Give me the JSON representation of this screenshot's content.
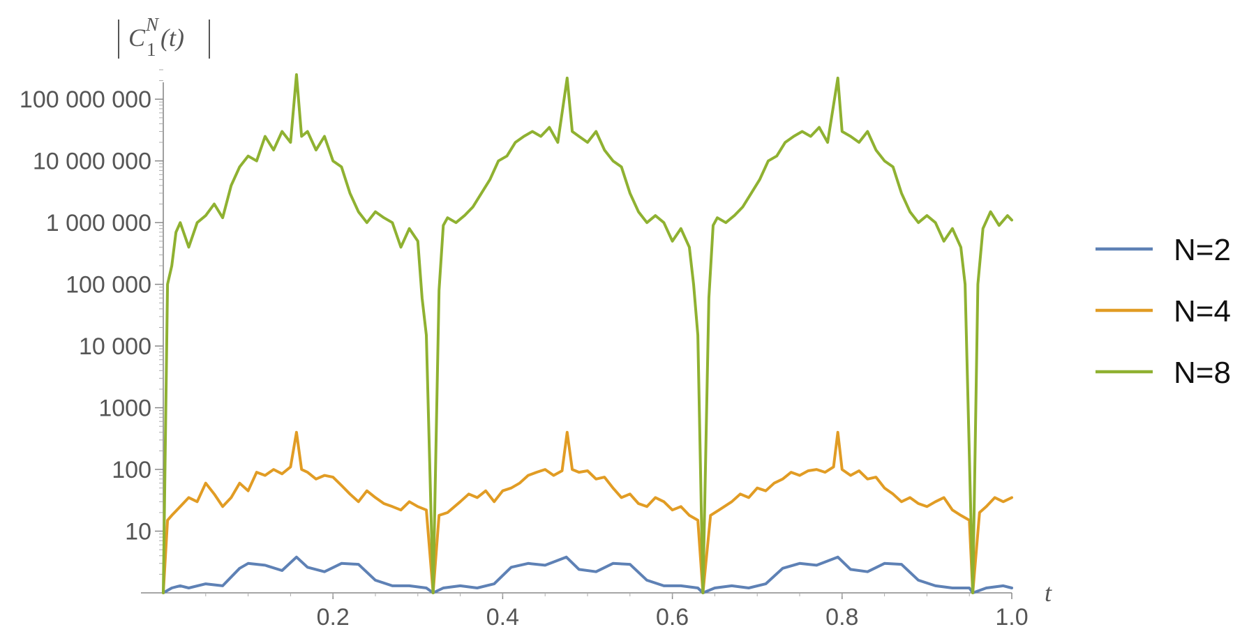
{
  "chart_data": {
    "type": "line",
    "title": "",
    "xlabel": "t",
    "ylabel": "|C_1^N(t)|",
    "ylabel_parts": {
      "base": "C",
      "sup": "N",
      "sub": "1",
      "arg": "(t)"
    },
    "xlim": [
      0,
      1.0
    ],
    "ylog": true,
    "ylim": [
      1,
      300000000
    ],
    "grid": false,
    "legend_position": "right",
    "x_ticks": [
      0.2,
      0.4,
      0.6,
      0.8,
      1.0
    ],
    "x_tick_labels": [
      "0.2",
      "0.4",
      "0.6",
      "0.8",
      "1.0"
    ],
    "y_ticks": [
      10,
      100,
      1000,
      10000,
      100000,
      1000000,
      10000000,
      100000000
    ],
    "y_tick_labels": [
      "10",
      "100",
      "1000",
      "10 000",
      "100 000",
      "1 000 000",
      "10 000 000",
      "100 000 000"
    ],
    "series": [
      {
        "name": "N=2",
        "color": "#5e81b5",
        "x": [
          0.0,
          0.01,
          0.02,
          0.03,
          0.05,
          0.07,
          0.09,
          0.1,
          0.12,
          0.14,
          0.157,
          0.17,
          0.19,
          0.21,
          0.23,
          0.25,
          0.27,
          0.29,
          0.31,
          0.318,
          0.33,
          0.35,
          0.37,
          0.39,
          0.41,
          0.43,
          0.45,
          0.475,
          0.49,
          0.51,
          0.53,
          0.55,
          0.57,
          0.59,
          0.61,
          0.63,
          0.636,
          0.65,
          0.67,
          0.69,
          0.71,
          0.73,
          0.75,
          0.77,
          0.795,
          0.81,
          0.83,
          0.85,
          0.87,
          0.89,
          0.91,
          0.93,
          0.95,
          0.954,
          0.97,
          0.99,
          1.0
        ],
        "y": [
          1,
          1.2,
          1.3,
          1.2,
          1.4,
          1.3,
          2.5,
          3,
          2.8,
          2.3,
          3.8,
          2.6,
          2.2,
          3,
          2.9,
          1.6,
          1.3,
          1.3,
          1.2,
          1,
          1.2,
          1.3,
          1.2,
          1.4,
          2.6,
          3,
          2.8,
          3.8,
          2.4,
          2.2,
          3,
          2.9,
          1.6,
          1.3,
          1.3,
          1.2,
          1,
          1.2,
          1.3,
          1.2,
          1.4,
          2.5,
          3,
          2.8,
          3.8,
          2.4,
          2.2,
          3,
          2.9,
          1.6,
          1.3,
          1.2,
          1.2,
          1,
          1.2,
          1.3,
          1.2
        ]
      },
      {
        "name": "N=4",
        "color": "#e19c24",
        "x": [
          0.0,
          0.005,
          0.01,
          0.02,
          0.03,
          0.04,
          0.05,
          0.06,
          0.07,
          0.08,
          0.09,
          0.1,
          0.11,
          0.12,
          0.13,
          0.14,
          0.15,
          0.157,
          0.163,
          0.17,
          0.18,
          0.19,
          0.2,
          0.21,
          0.22,
          0.23,
          0.24,
          0.25,
          0.26,
          0.27,
          0.28,
          0.29,
          0.3,
          0.31,
          0.318,
          0.325,
          0.335,
          0.35,
          0.36,
          0.37,
          0.38,
          0.39,
          0.4,
          0.41,
          0.42,
          0.43,
          0.44,
          0.45,
          0.46,
          0.47,
          0.476,
          0.482,
          0.49,
          0.5,
          0.51,
          0.52,
          0.53,
          0.54,
          0.55,
          0.56,
          0.57,
          0.58,
          0.59,
          0.6,
          0.61,
          0.62,
          0.63,
          0.636,
          0.645,
          0.655,
          0.67,
          0.68,
          0.69,
          0.7,
          0.71,
          0.72,
          0.73,
          0.74,
          0.75,
          0.76,
          0.77,
          0.78,
          0.79,
          0.795,
          0.8,
          0.81,
          0.82,
          0.83,
          0.84,
          0.85,
          0.86,
          0.87,
          0.88,
          0.89,
          0.9,
          0.91,
          0.92,
          0.93,
          0.94,
          0.95,
          0.954,
          0.962,
          0.97,
          0.98,
          0.99,
          1.0
        ],
        "y": [
          1,
          15,
          18,
          25,
          35,
          30,
          60,
          40,
          25,
          35,
          60,
          45,
          90,
          80,
          100,
          85,
          110,
          400,
          100,
          90,
          70,
          80,
          75,
          55,
          40,
          30,
          45,
          35,
          28,
          25,
          22,
          30,
          25,
          22,
          1,
          18,
          20,
          30,
          40,
          35,
          45,
          30,
          45,
          50,
          60,
          80,
          90,
          100,
          80,
          95,
          400,
          100,
          90,
          95,
          70,
          75,
          50,
          35,
          40,
          28,
          25,
          35,
          30,
          22,
          25,
          18,
          15,
          1,
          18,
          22,
          30,
          40,
          35,
          50,
          45,
          60,
          70,
          90,
          80,
          95,
          100,
          90,
          110,
          400,
          100,
          80,
          95,
          70,
          75,
          50,
          40,
          30,
          35,
          28,
          25,
          30,
          35,
          22,
          18,
          15,
          1,
          20,
          25,
          35,
          30,
          35
        ]
      },
      {
        "name": "N=8",
        "color": "#8fb131",
        "x": [
          0.0,
          0.005,
          0.01,
          0.015,
          0.02,
          0.03,
          0.04,
          0.05,
          0.06,
          0.07,
          0.08,
          0.09,
          0.1,
          0.11,
          0.12,
          0.13,
          0.14,
          0.15,
          0.157,
          0.163,
          0.17,
          0.18,
          0.19,
          0.2,
          0.21,
          0.22,
          0.23,
          0.24,
          0.25,
          0.26,
          0.27,
          0.28,
          0.29,
          0.3,
          0.305,
          0.31,
          0.318,
          0.325,
          0.33,
          0.335,
          0.345,
          0.355,
          0.365,
          0.375,
          0.385,
          0.395,
          0.405,
          0.415,
          0.425,
          0.435,
          0.445,
          0.455,
          0.465,
          0.476,
          0.482,
          0.49,
          0.5,
          0.51,
          0.52,
          0.53,
          0.54,
          0.55,
          0.56,
          0.57,
          0.58,
          0.59,
          0.6,
          0.61,
          0.62,
          0.625,
          0.63,
          0.636,
          0.643,
          0.648,
          0.653,
          0.663,
          0.673,
          0.683,
          0.693,
          0.703,
          0.713,
          0.723,
          0.733,
          0.743,
          0.753,
          0.763,
          0.773,
          0.783,
          0.795,
          0.8,
          0.81,
          0.82,
          0.83,
          0.84,
          0.85,
          0.86,
          0.87,
          0.88,
          0.89,
          0.9,
          0.91,
          0.92,
          0.93,
          0.94,
          0.945,
          0.954,
          0.96,
          0.966,
          0.975,
          0.985,
          0.995,
          1.0
        ],
        "y": [
          1,
          100000,
          200000,
          700000,
          1000000,
          400000,
          1000000,
          1300000,
          2000000,
          1200000,
          4000000,
          8000000,
          12000000,
          10000000,
          25000000,
          15000000,
          30000000,
          20000000,
          250000000,
          25000000,
          30000000,
          15000000,
          25000000,
          10000000,
          8000000,
          3000000,
          1500000,
          1000000,
          1500000,
          1200000,
          1000000,
          400000,
          800000,
          500000,
          60000,
          15000,
          1,
          80000,
          900000,
          1200000,
          1000000,
          1300000,
          1800000,
          3000000,
          5000000,
          10000000,
          12000000,
          20000000,
          25000000,
          30000000,
          25000000,
          35000000,
          20000000,
          220000000,
          30000000,
          25000000,
          20000000,
          30000000,
          15000000,
          10000000,
          8000000,
          3000000,
          1500000,
          1000000,
          1300000,
          1000000,
          500000,
          800000,
          400000,
          100000,
          15000,
          1,
          60000,
          900000,
          1200000,
          1000000,
          1300000,
          1800000,
          3000000,
          5000000,
          10000000,
          12000000,
          20000000,
          25000000,
          30000000,
          25000000,
          35000000,
          20000000,
          220000000,
          30000000,
          25000000,
          20000000,
          30000000,
          15000000,
          10000000,
          8000000,
          3000000,
          1500000,
          1000000,
          1300000,
          1000000,
          500000,
          800000,
          400000,
          100000,
          1,
          100000,
          800000,
          1500000,
          900000,
          1300000,
          1100000
        ]
      }
    ]
  }
}
